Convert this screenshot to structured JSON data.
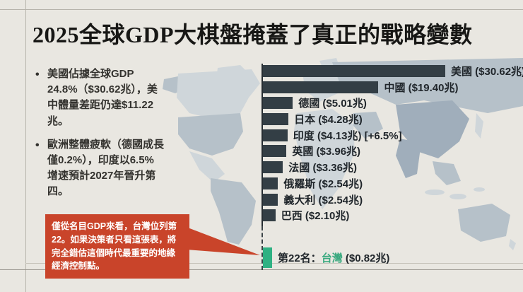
{
  "page": {
    "background": "#e9e7e1",
    "title": "2025全球GDP大棋盤掩蓋了真正的戰略變數"
  },
  "bullets": [
    {
      "text": "美國佔據全球GDP 24.8%（$30.62兆），美中體量差距仍達$11.22兆。"
    },
    {
      "text": "歐洲整體疲軟（德國成長僅0.2%），印度以6.5%增速預計2027年晉升第四。"
    }
  ],
  "callout": {
    "text": "僅從名目GDP來看，台灣位列第22。如果決策者只看這張表，將完全錯估這個時代最重要的地緣經濟控制點。",
    "background": "#c9442a",
    "text_color": "#ffffff"
  },
  "chart_data": {
    "type": "bar",
    "orientation": "horizontal",
    "title": "",
    "unit": "兆 (trillion USD)",
    "bar_color": "#333e45",
    "highlight_bar_color": "#2fb183",
    "highlight_text_color": "#3aa97f",
    "map_colors": {
      "light": "#cfd6da",
      "mid": "#b6c1c9",
      "dark": "#a0aebb"
    },
    "max_value": 30.62,
    "bars": [
      {
        "country": "美國",
        "value": 30.62,
        "label": "美國 ($30.62兆)"
      },
      {
        "country": "中國",
        "value": 19.4,
        "label": "中國 ($19.40兆)"
      },
      {
        "country": "德國",
        "value": 5.01,
        "label": "德國 ($5.01兆)"
      },
      {
        "country": "日本",
        "value": 4.28,
        "label": "日本 ($4.28兆)"
      },
      {
        "country": "印度",
        "value": 4.13,
        "label": "印度 ($4.13兆) [+6.5%]"
      },
      {
        "country": "英國",
        "value": 3.96,
        "label": "英國 ($3.96兆)"
      },
      {
        "country": "法國",
        "value": 3.36,
        "label": "法國 ($3.36兆)"
      },
      {
        "country": "俄羅斯",
        "value": 2.54,
        "label": "俄羅斯 ($2.54兆)"
      },
      {
        "country": "義大利",
        "value": 2.54,
        "label": "義大利 ($2.54兆)"
      },
      {
        "country": "巴西",
        "value": 2.1,
        "label": "巴西 ($2.10兆)"
      }
    ],
    "taiwan": {
      "rank_prefix": "第22名：",
      "name": "台灣",
      "value": 0.82,
      "suffix": " ($0.82兆)"
    }
  }
}
